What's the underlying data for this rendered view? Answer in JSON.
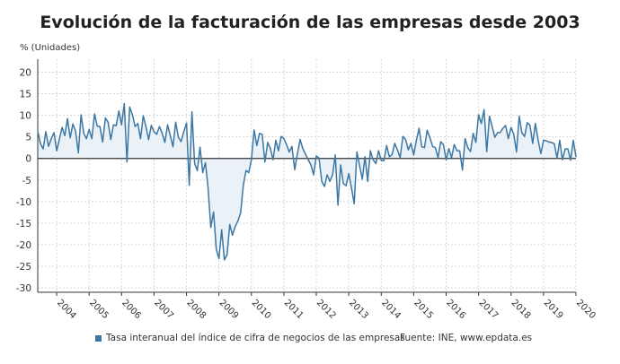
{
  "title": "Evolución de la facturación de las empresas desde 2003",
  "unit_label": "% (Unidades)",
  "legend_label": "Tasa interanual del índice de cifra de negocios de las empresas",
  "source": "Fuente: INE, www.epdata.es",
  "chart_data": {
    "type": "area",
    "title": "Evolución de la facturación de las empresas desde 2003",
    "ylabel": "% (Unidades)",
    "ylim": [
      -31,
      23
    ],
    "yticks": [
      20,
      15,
      10,
      5,
      0,
      -5,
      -10,
      -15,
      -20,
      -25,
      -30
    ],
    "xticks": [
      "2004",
      "2005",
      "2006",
      "2007",
      "2008",
      "2009",
      "2010",
      "2011",
      "2012",
      "2013",
      "2014",
      "2015",
      "2016",
      "2017",
      "2018",
      "2019",
      "2020"
    ],
    "grid": true,
    "legend_position": "bottom",
    "colors": {
      "line": "#3d77a3",
      "fill": "#eaf1f7",
      "zero_line": "#333333"
    },
    "series": [
      {
        "name": "Tasa interanual del índice de cifra de negocios de las empresas",
        "x": [
          "2003-06",
          "2003-07",
          "2003-08",
          "2003-09",
          "2003-10",
          "2003-11",
          "2003-12",
          "2004-01",
          "2004-02",
          "2004-03",
          "2004-04",
          "2004-05",
          "2004-06",
          "2004-07",
          "2004-08",
          "2004-09",
          "2004-10",
          "2004-11",
          "2004-12",
          "2005-01",
          "2005-02",
          "2005-03",
          "2005-04",
          "2005-05",
          "2005-06",
          "2005-07",
          "2005-08",
          "2005-09",
          "2005-10",
          "2005-11",
          "2005-12",
          "2006-01",
          "2006-02",
          "2006-03",
          "2006-04",
          "2006-05",
          "2006-06",
          "2006-07",
          "2006-08",
          "2006-09",
          "2006-10",
          "2006-11",
          "2006-12",
          "2007-01",
          "2007-02",
          "2007-03",
          "2007-04",
          "2007-05",
          "2007-06",
          "2007-07",
          "2007-08",
          "2007-09",
          "2007-10",
          "2007-11",
          "2007-12",
          "2008-01",
          "2008-02",
          "2008-03",
          "2008-04",
          "2008-05",
          "2008-06",
          "2008-07",
          "2008-08",
          "2008-09",
          "2008-10",
          "2008-11",
          "2008-12",
          "2009-01",
          "2009-02",
          "2009-03",
          "2009-04",
          "2009-05",
          "2009-06",
          "2009-07",
          "2009-08",
          "2009-09",
          "2009-10",
          "2009-11",
          "2009-12",
          "2010-01",
          "2010-02",
          "2010-03",
          "2010-04",
          "2010-05",
          "2010-06",
          "2010-07",
          "2010-08",
          "2010-09",
          "2010-10",
          "2010-11",
          "2010-12",
          "2011-01",
          "2011-02",
          "2011-03",
          "2011-04",
          "2011-05",
          "2011-06",
          "2011-07",
          "2011-08",
          "2011-09",
          "2011-10",
          "2011-11",
          "2011-12",
          "2012-01",
          "2012-02",
          "2012-03",
          "2012-04",
          "2012-05",
          "2012-06",
          "2012-07",
          "2012-08",
          "2012-09",
          "2012-10",
          "2012-11",
          "2012-12",
          "2013-01",
          "2013-02",
          "2013-03",
          "2013-04",
          "2013-05",
          "2013-06",
          "2013-07",
          "2013-08",
          "2013-09",
          "2013-10",
          "2013-11",
          "2013-12",
          "2014-01",
          "2014-02",
          "2014-03",
          "2014-04",
          "2014-05",
          "2014-06",
          "2014-07",
          "2014-08",
          "2014-09",
          "2014-10",
          "2014-11",
          "2014-12",
          "2015-01",
          "2015-02",
          "2015-03",
          "2015-04",
          "2015-05",
          "2015-06",
          "2015-07",
          "2015-08",
          "2015-09",
          "2015-10",
          "2015-11",
          "2015-12",
          "2016-01",
          "2016-02",
          "2016-03",
          "2016-04",
          "2016-05",
          "2016-06",
          "2016-07",
          "2016-08",
          "2016-09",
          "2016-10",
          "2016-11",
          "2016-12",
          "2017-01",
          "2017-02",
          "2017-03",
          "2017-04",
          "2017-05",
          "2017-06",
          "2017-07",
          "2017-08",
          "2017-09",
          "2017-10",
          "2017-11",
          "2017-12",
          "2018-01",
          "2018-02",
          "2018-03",
          "2018-04",
          "2018-05",
          "2018-06",
          "2018-07",
          "2018-08",
          "2018-09",
          "2018-10",
          "2018-11",
          "2018-12",
          "2019-01",
          "2019-02",
          "2019-03",
          "2019-04",
          "2019-05",
          "2019-06",
          "2019-07",
          "2019-08",
          "2019-09",
          "2019-10",
          "2019-11",
          "2019-12",
          "2020-01"
        ],
        "values": [
          6.3,
          3.5,
          2.2,
          6.2,
          2.8,
          4.6,
          6.0,
          1.8,
          4.5,
          7.2,
          5.3,
          9.2,
          4.8,
          8,
          6.3,
          1.3,
          10.1,
          5.8,
          4.6,
          6.7,
          4.6,
          10.3,
          7.5,
          7.4,
          3.8,
          9.4,
          8.4,
          4.4,
          7.8,
          7.6,
          11,
          7.8,
          12.7,
          -0.8,
          11.9,
          10.1,
          7.4,
          8.1,
          4.6,
          9.9,
          7.4,
          4.4,
          7.7,
          6.2,
          5.6,
          7.4,
          5.8,
          3.7,
          7.8,
          5.3,
          2.7,
          8.4,
          4.9,
          3.9,
          6.2,
          8.2,
          -6.2,
          10.8,
          -1.2,
          -2.8,
          2.6,
          -3.3,
          -1,
          -6.9,
          -16,
          -12.4,
          -21.1,
          -23.2,
          -16.5,
          -23.5,
          -22.3,
          -15.3,
          -17.8,
          -15.8,
          -14.5,
          -12.6,
          -6.2,
          -2.8,
          -3.3,
          -0.3,
          6.6,
          3,
          5.8,
          5.6,
          -0.8,
          3.7,
          2.3,
          -0.3,
          4.2,
          1.8,
          5.1,
          4.6,
          3.2,
          1.5,
          2.8,
          -2.6,
          1.1,
          4.4,
          2.3,
          1.0,
          -0.3,
          -1.5,
          -3.8,
          0.6,
          0.1,
          -5.3,
          -6.5,
          -3.8,
          -5.3,
          -3.8,
          0.8,
          -10.8,
          -1.5,
          -5.8,
          -6.3,
          -3.5,
          -6.9,
          -10.5,
          1.5,
          -1.7,
          -4.8,
          0.4,
          -5.3,
          1.8,
          -0.3,
          -1.2,
          1.8,
          -0.5,
          -0.5,
          3,
          0.4,
          0.9,
          3.5,
          2,
          0.2,
          5.1,
          4.4,
          2,
          3.5,
          0.8,
          4.2,
          7,
          2.7,
          2.5,
          6.5,
          4.8,
          2.8,
          2.5,
          0.2,
          3.9,
          3.2,
          -0.3,
          2.3,
          0.2,
          3.2,
          1.8,
          1.8,
          -2.7,
          4.6,
          2.5,
          1.6,
          5.8,
          3.7,
          10.1,
          8.1,
          11.3,
          1.6,
          9.8,
          7.4,
          4.9,
          6,
          6,
          7,
          7.6,
          4.6,
          7.2,
          5.6,
          1.5,
          9.8,
          6,
          5.1,
          8.3,
          7.7,
          3.5,
          8.1,
          4.2,
          1.1,
          4.2,
          4.1,
          3.8,
          3.7,
          3.4,
          0.1,
          4.2,
          -0.3,
          2.2,
          2.2,
          -0.4,
          4.2,
          0.4
        ]
      }
    ]
  }
}
